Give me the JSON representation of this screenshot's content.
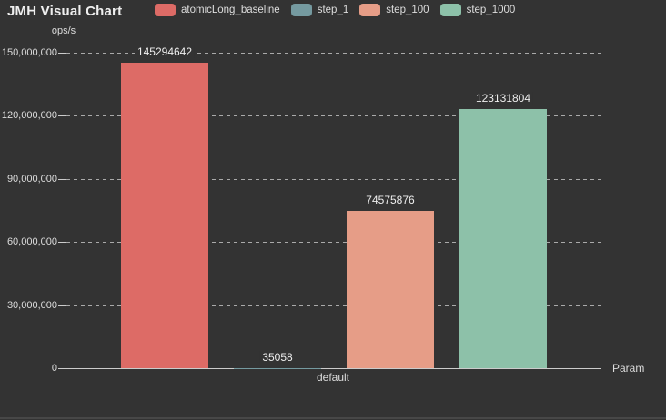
{
  "title": "JMH Visual Chart",
  "chart_data": {
    "type": "bar",
    "title": "JMH Visual Chart",
    "y_axis_name": "ops/s",
    "x_axis_name": "Param",
    "categories": [
      "default"
    ],
    "series": [
      {
        "name": "atomicLong_baseline",
        "color": "#dd6b66",
        "values": [
          145294642
        ],
        "data_label": "145294642"
      },
      {
        "name": "step_1",
        "color": "#759aa0",
        "values": [
          35058
        ],
        "data_label": "35058"
      },
      {
        "name": "step_100",
        "color": "#e69d87",
        "values": [
          74575876
        ],
        "data_label": "74575876"
      },
      {
        "name": "step_1000",
        "color": "#8dc1a9",
        "values": [
          123131804
        ],
        "data_label": "123131804"
      }
    ],
    "ylim": [
      0,
      150000000
    ],
    "y_ticks": [
      {
        "value": 0,
        "label": "0"
      },
      {
        "value": 30000000,
        "label": "30,000,000"
      },
      {
        "value": 60000000,
        "label": "60,000,000"
      },
      {
        "value": 90000000,
        "label": "90,000,000"
      },
      {
        "value": 120000000,
        "label": "120,000,000"
      },
      {
        "value": 150000000,
        "label": "150,000,000"
      }
    ],
    "grid": "horizontal-dashed",
    "legend_position": "top"
  },
  "theme": {
    "background": "#333333",
    "title_color": "#eeeeee",
    "label_color": "#dddddd",
    "data_label_color": "#eeeeee",
    "axis_color": "#cccccc",
    "grid_color": "#aaaaaa"
  }
}
